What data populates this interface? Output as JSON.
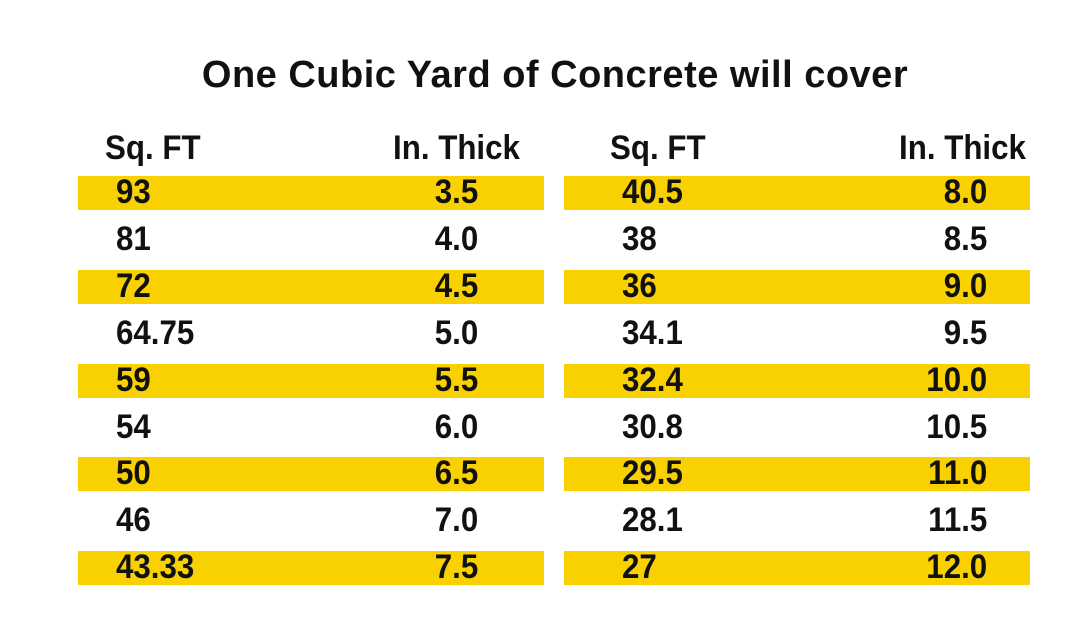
{
  "title": "One Cubic Yard of Concrete will cover",
  "colors": {
    "highlight": "#F9D000",
    "text": "#111111",
    "background": "#FFFFFF"
  },
  "left_table": {
    "headers": {
      "sq_ft": "Sq. FT",
      "in_thick": "In. Thick"
    },
    "rows": [
      {
        "sq_ft": "93",
        "in_thick": "3.5",
        "highlighted": true
      },
      {
        "sq_ft": "81",
        "in_thick": "4.0",
        "highlighted": false
      },
      {
        "sq_ft": "72",
        "in_thick": "4.5",
        "highlighted": true
      },
      {
        "sq_ft": "64.75",
        "in_thick": "5.0",
        "highlighted": false
      },
      {
        "sq_ft": "59",
        "in_thick": "5.5",
        "highlighted": true
      },
      {
        "sq_ft": "54",
        "in_thick": "6.0",
        "highlighted": false
      },
      {
        "sq_ft": "50",
        "in_thick": "6.5",
        "highlighted": true
      },
      {
        "sq_ft": "46",
        "in_thick": "7.0",
        "highlighted": false
      },
      {
        "sq_ft": "43.33",
        "in_thick": "7.5",
        "highlighted": true
      }
    ]
  },
  "right_table": {
    "headers": {
      "sq_ft": "Sq. FT",
      "in_thick": "In. Thick"
    },
    "rows": [
      {
        "sq_ft": "40.5",
        "in_thick": "8.0",
        "highlighted": true
      },
      {
        "sq_ft": "38",
        "in_thick": "8.5",
        "highlighted": false
      },
      {
        "sq_ft": "36",
        "in_thick": "9.0",
        "highlighted": true
      },
      {
        "sq_ft": "34.1",
        "in_thick": "9.5",
        "highlighted": false
      },
      {
        "sq_ft": "32.4",
        "in_thick": "10.0",
        "highlighted": true
      },
      {
        "sq_ft": "30.8",
        "in_thick": "10.5",
        "highlighted": false
      },
      {
        "sq_ft": "29.5",
        "in_thick": "11.0",
        "highlighted": true
      },
      {
        "sq_ft": "28.1",
        "in_thick": "11.5",
        "highlighted": false
      },
      {
        "sq_ft": "27",
        "in_thick": "12.0",
        "highlighted": true
      }
    ]
  }
}
